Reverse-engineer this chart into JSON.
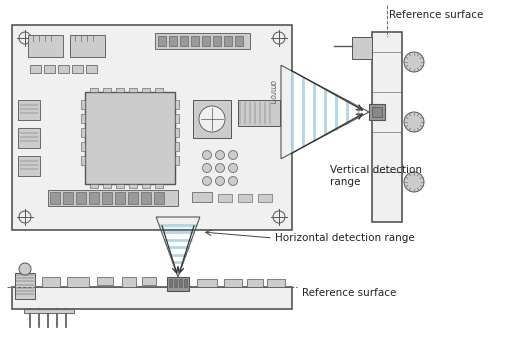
{
  "bg_color": "#ffffff",
  "text_color": "#222222",
  "line_color": "#555555",
  "light_blue": "#add8e6",
  "pcb_face": "#f0f0f0",
  "pcb_border": "#555555",
  "comp_face": "#cccccc",
  "comp_dark": "#999999",
  "label_ref_surface_top": "Reference surface",
  "label_vertical": "Vertical detection\nrange",
  "label_horizontal": "Horizontal detection range",
  "label_ref_surface_bottom": "Reference surface",
  "font_size": 7.5,
  "font_family": "sans-serif"
}
